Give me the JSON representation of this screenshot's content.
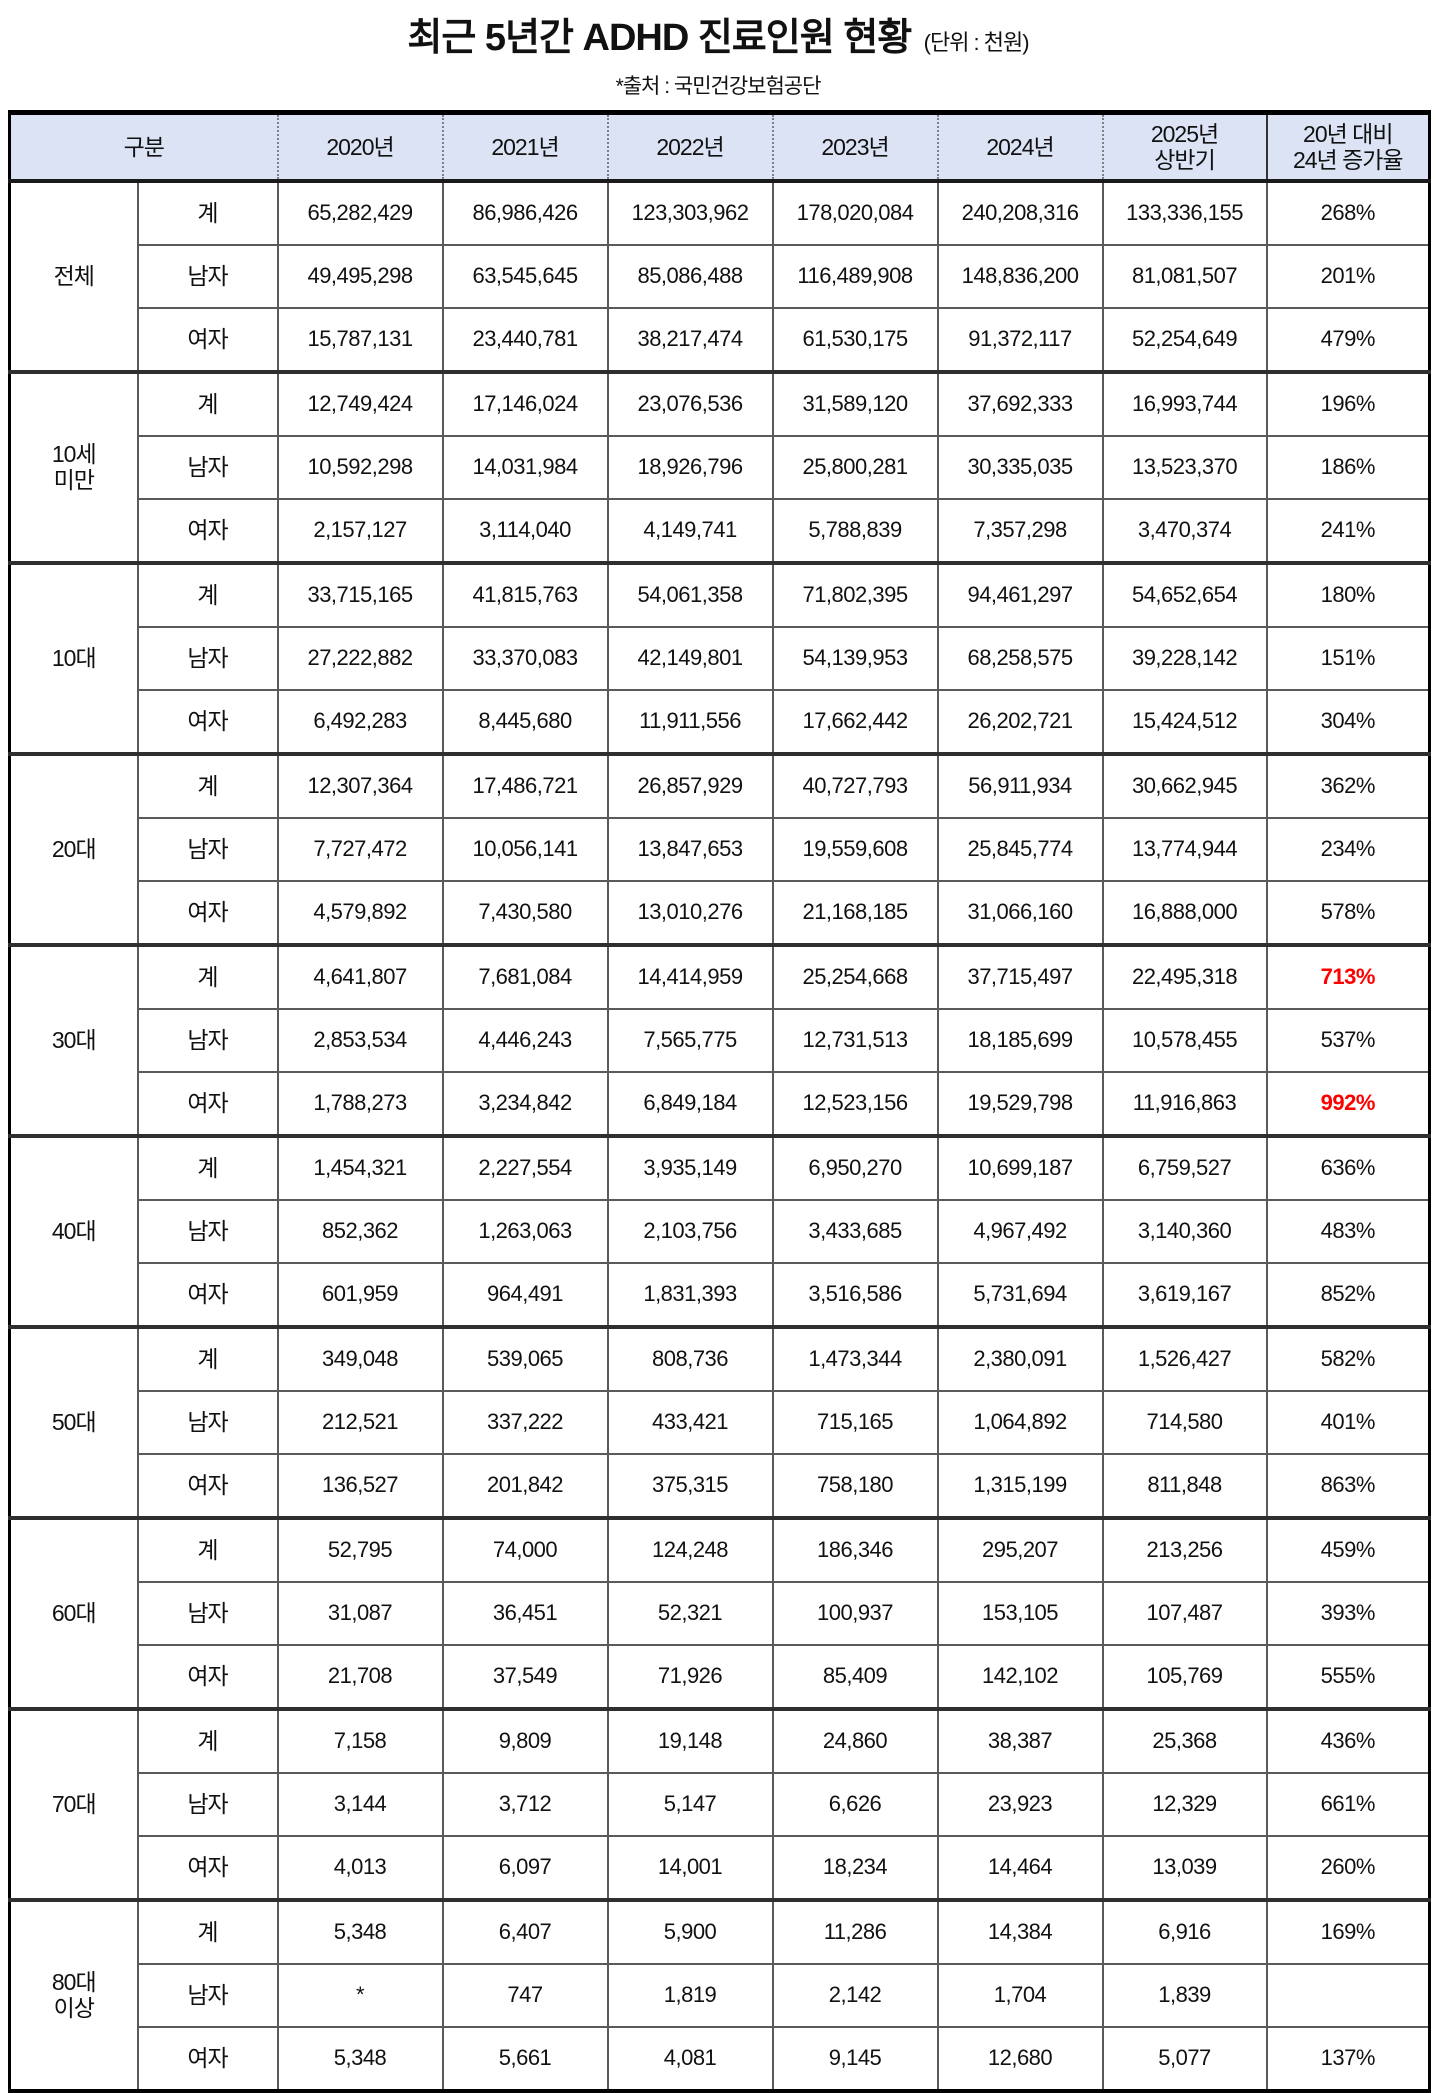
{
  "title": {
    "main": "최근 5년간 ADHD 진료인원 현황",
    "unit": "(단위 : 천원)",
    "source": "*출처 : 국민건강보험공단"
  },
  "table": {
    "header": {
      "gubun": "구분",
      "years": [
        "2020년",
        "2021년",
        "2022년",
        "2023년",
        "2024년",
        "2025년\n상반기"
      ],
      "rate": "20년 대비\n24년 증가율"
    },
    "groups": [
      {
        "label": "전체",
        "rows": [
          {
            "category": "계",
            "values": [
              "65,282,429",
              "86,986,426",
              "123,303,962",
              "178,020,084",
              "240,208,316",
              "133,336,155"
            ],
            "rate": "268%",
            "highlight": false
          },
          {
            "category": "남자",
            "values": [
              "49,495,298",
              "63,545,645",
              "85,086,488",
              "116,489,908",
              "148,836,200",
              "81,081,507"
            ],
            "rate": "201%",
            "highlight": false
          },
          {
            "category": "여자",
            "values": [
              "15,787,131",
              "23,440,781",
              "38,217,474",
              "61,530,175",
              "91,372,117",
              "52,254,649"
            ],
            "rate": "479%",
            "highlight": false
          }
        ]
      },
      {
        "label": "10세\n미만",
        "rows": [
          {
            "category": "계",
            "values": [
              "12,749,424",
              "17,146,024",
              "23,076,536",
              "31,589,120",
              "37,692,333",
              "16,993,744"
            ],
            "rate": "196%",
            "highlight": false
          },
          {
            "category": "남자",
            "values": [
              "10,592,298",
              "14,031,984",
              "18,926,796",
              "25,800,281",
              "30,335,035",
              "13,523,370"
            ],
            "rate": "186%",
            "highlight": false
          },
          {
            "category": "여자",
            "values": [
              "2,157,127",
              "3,114,040",
              "4,149,741",
              "5,788,839",
              "7,357,298",
              "3,470,374"
            ],
            "rate": "241%",
            "highlight": false
          }
        ]
      },
      {
        "label": "10대",
        "rows": [
          {
            "category": "계",
            "values": [
              "33,715,165",
              "41,815,763",
              "54,061,358",
              "71,802,395",
              "94,461,297",
              "54,652,654"
            ],
            "rate": "180%",
            "highlight": false
          },
          {
            "category": "남자",
            "values": [
              "27,222,882",
              "33,370,083",
              "42,149,801",
              "54,139,953",
              "68,258,575",
              "39,228,142"
            ],
            "rate": "151%",
            "highlight": false
          },
          {
            "category": "여자",
            "values": [
              "6,492,283",
              "8,445,680",
              "11,911,556",
              "17,662,442",
              "26,202,721",
              "15,424,512"
            ],
            "rate": "304%",
            "highlight": false
          }
        ]
      },
      {
        "label": "20대",
        "rows": [
          {
            "category": "계",
            "values": [
              "12,307,364",
              "17,486,721",
              "26,857,929",
              "40,727,793",
              "56,911,934",
              "30,662,945"
            ],
            "rate": "362%",
            "highlight": false
          },
          {
            "category": "남자",
            "values": [
              "7,727,472",
              "10,056,141",
              "13,847,653",
              "19,559,608",
              "25,845,774",
              "13,774,944"
            ],
            "rate": "234%",
            "highlight": false
          },
          {
            "category": "여자",
            "values": [
              "4,579,892",
              "7,430,580",
              "13,010,276",
              "21,168,185",
              "31,066,160",
              "16,888,000"
            ],
            "rate": "578%",
            "highlight": false
          }
        ]
      },
      {
        "label": "30대",
        "rows": [
          {
            "category": "계",
            "values": [
              "4,641,807",
              "7,681,084",
              "14,414,959",
              "25,254,668",
              "37,715,497",
              "22,495,318"
            ],
            "rate": "713%",
            "highlight": true
          },
          {
            "category": "남자",
            "values": [
              "2,853,534",
              "4,446,243",
              "7,565,775",
              "12,731,513",
              "18,185,699",
              "10,578,455"
            ],
            "rate": "537%",
            "highlight": false
          },
          {
            "category": "여자",
            "values": [
              "1,788,273",
              "3,234,842",
              "6,849,184",
              "12,523,156",
              "19,529,798",
              "11,916,863"
            ],
            "rate": "992%",
            "highlight": true
          }
        ]
      },
      {
        "label": "40대",
        "rows": [
          {
            "category": "계",
            "values": [
              "1,454,321",
              "2,227,554",
              "3,935,149",
              "6,950,270",
              "10,699,187",
              "6,759,527"
            ],
            "rate": "636%",
            "highlight": false
          },
          {
            "category": "남자",
            "values": [
              "852,362",
              "1,263,063",
              "2,103,756",
              "3,433,685",
              "4,967,492",
              "3,140,360"
            ],
            "rate": "483%",
            "highlight": false
          },
          {
            "category": "여자",
            "values": [
              "601,959",
              "964,491",
              "1,831,393",
              "3,516,586",
              "5,731,694",
              "3,619,167"
            ],
            "rate": "852%",
            "highlight": false
          }
        ]
      },
      {
        "label": "50대",
        "rows": [
          {
            "category": "계",
            "values": [
              "349,048",
              "539,065",
              "808,736",
              "1,473,344",
              "2,380,091",
              "1,526,427"
            ],
            "rate": "582%",
            "highlight": false
          },
          {
            "category": "남자",
            "values": [
              "212,521",
              "337,222",
              "433,421",
              "715,165",
              "1,064,892",
              "714,580"
            ],
            "rate": "401%",
            "highlight": false
          },
          {
            "category": "여자",
            "values": [
              "136,527",
              "201,842",
              "375,315",
              "758,180",
              "1,315,199",
              "811,848"
            ],
            "rate": "863%",
            "highlight": false
          }
        ]
      },
      {
        "label": "60대",
        "rows": [
          {
            "category": "계",
            "values": [
              "52,795",
              "74,000",
              "124,248",
              "186,346",
              "295,207",
              "213,256"
            ],
            "rate": "459%",
            "highlight": false
          },
          {
            "category": "남자",
            "values": [
              "31,087",
              "36,451",
              "52,321",
              "100,937",
              "153,105",
              "107,487"
            ],
            "rate": "393%",
            "highlight": false
          },
          {
            "category": "여자",
            "values": [
              "21,708",
              "37,549",
              "71,926",
              "85,409",
              "142,102",
              "105,769"
            ],
            "rate": "555%",
            "highlight": false
          }
        ]
      },
      {
        "label": "70대",
        "rows": [
          {
            "category": "계",
            "values": [
              "7,158",
              "9,809",
              "19,148",
              "24,860",
              "38,387",
              "25,368"
            ],
            "rate": "436%",
            "highlight": false
          },
          {
            "category": "남자",
            "values": [
              "3,144",
              "3,712",
              "5,147",
              "6,626",
              "23,923",
              "12,329"
            ],
            "rate": "661%",
            "highlight": false
          },
          {
            "category": "여자",
            "values": [
              "4,013",
              "6,097",
              "14,001",
              "18,234",
              "14,464",
              "13,039"
            ],
            "rate": "260%",
            "highlight": false
          }
        ]
      },
      {
        "label": "80대\n이상",
        "rows": [
          {
            "category": "계",
            "values": [
              "5,348",
              "6,407",
              "5,900",
              "11,286",
              "14,384",
              "6,916"
            ],
            "rate": "169%",
            "highlight": false
          },
          {
            "category": "남자",
            "values": [
              "*",
              "747",
              "1,819",
              "2,142",
              "1,704",
              "1,839"
            ],
            "rate": "",
            "highlight": false
          },
          {
            "category": "여자",
            "values": [
              "5,348",
              "5,661",
              "4,081",
              "9,145",
              "12,680",
              "5,077"
            ],
            "rate": "137%",
            "highlight": false
          }
        ]
      }
    ]
  }
}
